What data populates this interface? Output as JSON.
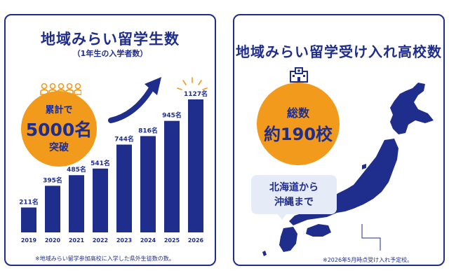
{
  "left_panel": {
    "title": "地域みらい留学生数",
    "subtitle": "（1年生の入学者数）",
    "badge": {
      "line1": "累計で",
      "line2": "5000名",
      "line3": "突破"
    },
    "footnote": "※地域みらい留学参加高校に入学した県外生徒数の数。"
  },
  "right_panel": {
    "title": "地域みらい留学受け入れ高校数",
    "badge": {
      "line1": "総数",
      "line2": "約190校"
    },
    "bubble": {
      "line1": "北海道から",
      "line2": "沖縄まで"
    },
    "footnote": "※2026年5月時点受け入れ予定校。"
  },
  "colors": {
    "navy": "#1f2d8c",
    "orange": "#f29a1c",
    "bubble": "#e6ecf7"
  },
  "chart_data": {
    "type": "bar",
    "categories": [
      "2019",
      "2020",
      "2021",
      "2022",
      "2023",
      "2024",
      "2025",
      "2026"
    ],
    "values": [
      211,
      395,
      485,
      541,
      744,
      816,
      945,
      1127
    ],
    "value_labels": [
      "211名",
      "395名",
      "485名",
      "541名",
      "744名",
      "816名",
      "945名",
      "1127名"
    ],
    "title": "地域みらい留学生数",
    "subtitle": "（1年生の入学者数）",
    "ylim": [
      0,
      1127
    ],
    "grid": false
  }
}
